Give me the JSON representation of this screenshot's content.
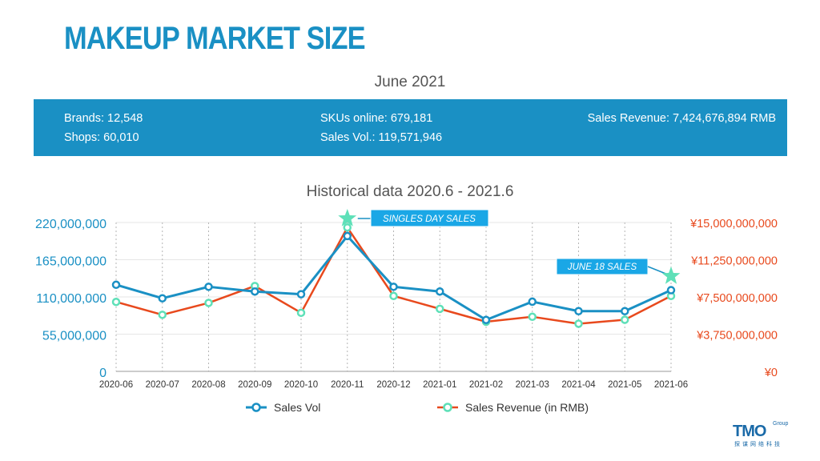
{
  "header": {
    "title": "MAKEUP MARKET SIZE",
    "period": "June 2021"
  },
  "stats": {
    "brands": "Brands: 12,548",
    "shops": "Shops: 60,010",
    "skus": "SKUs online: 679,181",
    "sales_vol": "Sales Vol.: 119,571,946",
    "sales_revenue": "Sales Revenue: 7,424,676,894 RMB"
  },
  "chart_data": {
    "type": "line",
    "title": "Historical data 2020.6 - 2021.6",
    "categories": [
      "2020-06",
      "2020-07",
      "2020-08",
      "2020-09",
      "2020-10",
      "2020-11",
      "2020-12",
      "2021-01",
      "2021-02",
      "2021-03",
      "2021-04",
      "2021-05",
      "2021-06"
    ],
    "y_left": {
      "ticks": [
        "0",
        "55,000,000",
        "110,000,000",
        "165,000,000",
        "220,000,000"
      ],
      "range": [
        0,
        220000000
      ]
    },
    "y_right": {
      "ticks": [
        "¥0",
        "¥3,750,000,000",
        "¥7,500,000,000",
        "¥11,250,000,000",
        "¥15,000,000,000"
      ],
      "range": [
        0,
        15000000000
      ]
    },
    "series": [
      {
        "name": "Sales Vol",
        "axis": "left",
        "color": "#1a90c4",
        "values": [
          128000000,
          108000000,
          125000000,
          118000000,
          114000000,
          200000000,
          125000000,
          118000000,
          76000000,
          103000000,
          89000000,
          89000000,
          120000000
        ]
      },
      {
        "name": "Sales Revenue (in RMB)",
        "axis": "right",
        "color": "#e8491d",
        "marker_color": "#5ee0b8",
        "values": [
          7000000000,
          5700000000,
          6900000000,
          8600000000,
          5900000000,
          14500000000,
          7600000000,
          6300000000,
          5000000000,
          5500000000,
          4800000000,
          5200000000,
          7600000000
        ]
      }
    ],
    "annotations": [
      {
        "label": "SINGLES DAY SALES",
        "category": "2020-11"
      },
      {
        "label": "JUNE 18 SALES",
        "category": "2021-06"
      }
    ],
    "legend": "bottom-center",
    "grid": "vertical dotted"
  },
  "colors": {
    "accent": "#1a90c4",
    "revenue": "#e8491d",
    "marker_mint": "#5ee0b8"
  },
  "logo": {
    "main": "TMO",
    "group": "Group",
    "sub": "探谋网络科技"
  }
}
